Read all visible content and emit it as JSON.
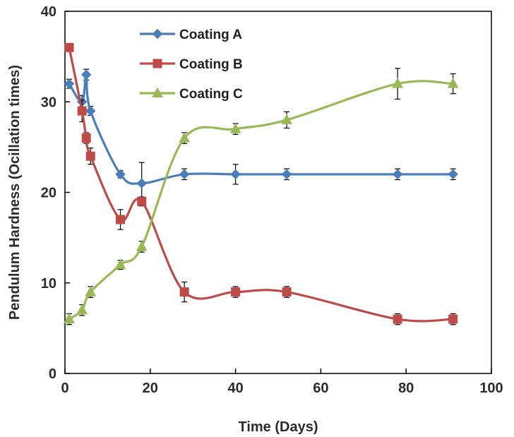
{
  "chart_data": {
    "type": "line",
    "title": "",
    "xlabel": "Time (Days)",
    "ylabel": "Pendulum Hardness (Ocillation times)",
    "xlim": [
      0,
      100
    ],
    "ylim": [
      0,
      40
    ],
    "xticks": [
      0,
      20,
      40,
      60,
      80,
      100
    ],
    "yticks": [
      0,
      10,
      20,
      30,
      40
    ],
    "grid": false,
    "legend_position": "top-center",
    "smooth": true,
    "error_bars": true,
    "series": [
      {
        "name": "Coating A",
        "color": "#4a7ebb",
        "marker": "diamond",
        "points": [
          {
            "x": 1,
            "y": 32,
            "err": 0.5
          },
          {
            "x": 4,
            "y": 30,
            "err": 0.7
          },
          {
            "x": 5,
            "y": 33,
            "err": 0.6
          },
          {
            "x": 6,
            "y": 29,
            "err": 0.5
          },
          {
            "x": 13,
            "y": 22,
            "err": 0.4
          },
          {
            "x": 18,
            "y": 21,
            "err": 2.3
          },
          {
            "x": 28,
            "y": 22,
            "err": 0.6
          },
          {
            "x": 40,
            "y": 22,
            "err": 1.1
          },
          {
            "x": 52,
            "y": 22,
            "err": 0.6
          },
          {
            "x": 78,
            "y": 22,
            "err": 0.6
          },
          {
            "x": 91,
            "y": 22,
            "err": 0.6
          }
        ]
      },
      {
        "name": "Coating B",
        "color": "#be4b48",
        "marker": "square",
        "points": [
          {
            "x": 1,
            "y": 36,
            "err": 0.4
          },
          {
            "x": 4,
            "y": 29,
            "err": 1.2
          },
          {
            "x": 5,
            "y": 26,
            "err": 0.6
          },
          {
            "x": 6,
            "y": 24,
            "err": 0.9
          },
          {
            "x": 13,
            "y": 17,
            "err": 1.1
          },
          {
            "x": 18,
            "y": 19,
            "err": 0.5
          },
          {
            "x": 28,
            "y": 9,
            "err": 1.1
          },
          {
            "x": 40,
            "y": 9,
            "err": 0.6
          },
          {
            "x": 52,
            "y": 9,
            "err": 0.6
          },
          {
            "x": 78,
            "y": 6,
            "err": 0.6
          },
          {
            "x": 91,
            "y": 6,
            "err": 0.6
          }
        ]
      },
      {
        "name": "Coating C",
        "color": "#98b954",
        "marker": "triangle",
        "points": [
          {
            "x": 1,
            "y": 6,
            "err": 0.6
          },
          {
            "x": 4,
            "y": 7,
            "err": 0.6
          },
          {
            "x": 6,
            "y": 9,
            "err": 0.6
          },
          {
            "x": 13,
            "y": 12,
            "err": 0.5
          },
          {
            "x": 18,
            "y": 14,
            "err": 0.6
          },
          {
            "x": 28,
            "y": 26,
            "err": 0.6
          },
          {
            "x": 40,
            "y": 27,
            "err": 0.6
          },
          {
            "x": 52,
            "y": 28,
            "err": 0.9
          },
          {
            "x": 78,
            "y": 32,
            "err": 1.7
          },
          {
            "x": 91,
            "y": 32,
            "err": 1.1
          }
        ]
      }
    ]
  }
}
